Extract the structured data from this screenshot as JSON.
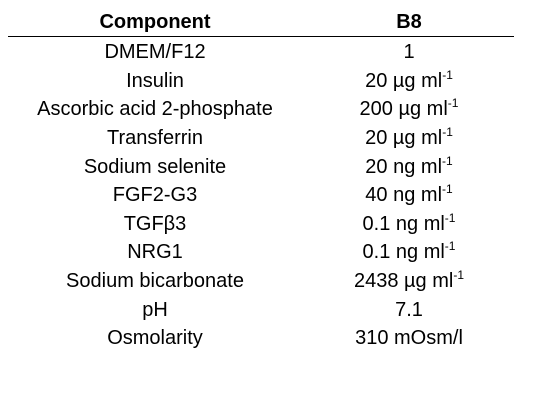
{
  "table": {
    "headers": {
      "component": "Component",
      "value": "B8"
    },
    "rows": [
      {
        "component": "DMEM/F12",
        "value": "1",
        "unit_sup": ""
      },
      {
        "component": "Insulin",
        "value": "20 µg ml",
        "unit_sup": "-1"
      },
      {
        "component": "Ascorbic acid 2-phosphate",
        "value": "200 µg ml",
        "unit_sup": "-1"
      },
      {
        "component": "Transferrin",
        "value": "20 µg ml",
        "unit_sup": "-1"
      },
      {
        "component": "Sodium selenite",
        "value": "20 ng ml",
        "unit_sup": "-1"
      },
      {
        "component": "FGF2-G3",
        "value": "40 ng ml",
        "unit_sup": "-1"
      },
      {
        "component": "TGFβ3",
        "value": "0.1 ng ml",
        "unit_sup": "-1"
      },
      {
        "component": "NRG1",
        "value": "0.1 ng ml",
        "unit_sup": "-1"
      },
      {
        "component": "Sodium bicarbonate",
        "value": "2438 µg ml",
        "unit_sup": "-1"
      },
      {
        "component": "pH",
        "value": "7.1",
        "unit_sup": ""
      },
      {
        "component": "Osmolarity",
        "value": "310 mOsm/l",
        "unit_sup": ""
      }
    ]
  }
}
